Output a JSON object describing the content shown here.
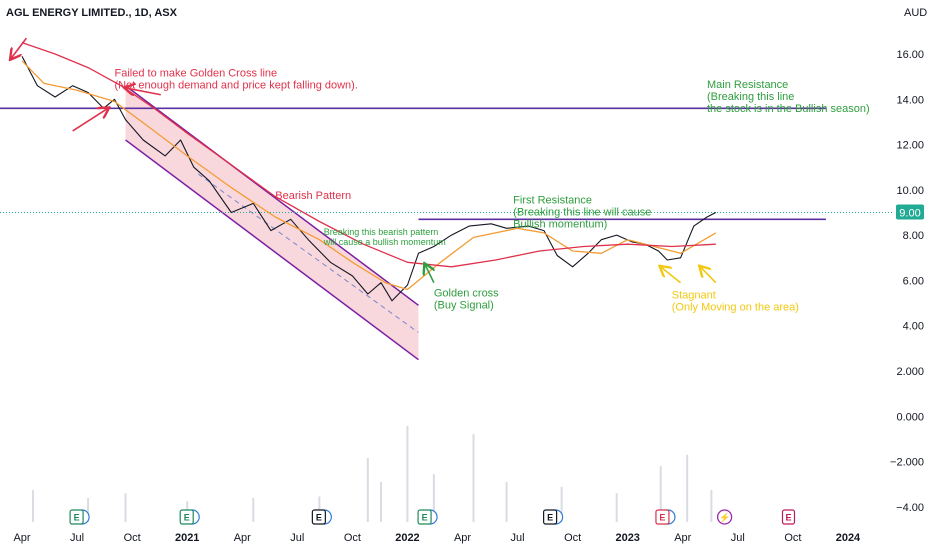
{
  "header": {
    "symbol": "AGL ENERGY LIMITED., 1D, ASX",
    "currency": "AUD"
  },
  "chart_data": {
    "type": "candlestick",
    "x_ticks": [
      "Apr",
      "Jul",
      "Oct",
      "2021",
      "Apr",
      "Jul",
      "Oct",
      "2022",
      "Apr",
      "Jul",
      "Oct",
      "2023",
      "Apr",
      "Jul",
      "Oct",
      "2024"
    ],
    "x_tick_bold": [
      false,
      false,
      false,
      true,
      false,
      false,
      false,
      true,
      false,
      false,
      false,
      true,
      false,
      false,
      false,
      true
    ],
    "y_ticks": [
      "16.00",
      "14.00",
      "12.00",
      "10.00",
      "8.00",
      "6.00",
      "4.00",
      "2.000",
      "0.000",
      "−2.000",
      "−4.00"
    ],
    "ylim": [
      -4.8,
      17.5
    ],
    "last_price": {
      "label": "9.00",
      "value": 9.0,
      "color": "#22ab94"
    },
    "series": [
      {
        "name": "price",
        "color": "#131722",
        "points": [
          [
            2020.25,
            15.9
          ],
          [
            2020.32,
            14.6
          ],
          [
            2020.4,
            14.1
          ],
          [
            2020.48,
            14.6
          ],
          [
            2020.55,
            14.3
          ],
          [
            2020.62,
            13.6
          ],
          [
            2020.67,
            14.0
          ],
          [
            2020.72,
            13.1
          ],
          [
            2020.8,
            12.2
          ],
          [
            2020.9,
            11.5
          ],
          [
            2020.97,
            12.2
          ],
          [
            2021.03,
            11.0
          ],
          [
            2021.1,
            10.4
          ],
          [
            2021.2,
            9.0
          ],
          [
            2021.3,
            9.4
          ],
          [
            2021.38,
            8.2
          ],
          [
            2021.47,
            8.7
          ],
          [
            2021.55,
            7.8
          ],
          [
            2021.65,
            6.8
          ],
          [
            2021.75,
            6.2
          ],
          [
            2021.82,
            5.4
          ],
          [
            2021.88,
            5.9
          ],
          [
            2021.93,
            5.1
          ],
          [
            2022.0,
            5.8
          ],
          [
            2022.05,
            7.2
          ],
          [
            2022.12,
            7.5
          ],
          [
            2022.2,
            8.0
          ],
          [
            2022.28,
            8.4
          ],
          [
            2022.38,
            8.5
          ],
          [
            2022.45,
            8.3
          ],
          [
            2022.55,
            8.4
          ],
          [
            2022.62,
            8.2
          ],
          [
            2022.68,
            7.1
          ],
          [
            2022.75,
            6.6
          ],
          [
            2022.82,
            7.2
          ],
          [
            2022.88,
            7.8
          ],
          [
            2022.95,
            8.0
          ],
          [
            2023.02,
            7.7
          ],
          [
            2023.08,
            7.6
          ],
          [
            2023.14,
            7.3
          ],
          [
            2023.18,
            6.9
          ],
          [
            2023.24,
            7.0
          ],
          [
            2023.3,
            8.4
          ],
          [
            2023.36,
            8.8
          ],
          [
            2023.4,
            9.0
          ]
        ]
      },
      {
        "name": "ma-fast",
        "color": "#f39c33",
        "points": [
          [
            2020.25,
            15.7
          ],
          [
            2020.35,
            14.7
          ],
          [
            2020.5,
            14.4
          ],
          [
            2020.67,
            13.9
          ],
          [
            2020.85,
            12.6
          ],
          [
            2021.0,
            11.5
          ],
          [
            2021.2,
            10.1
          ],
          [
            2021.4,
            8.8
          ],
          [
            2021.6,
            7.8
          ],
          [
            2021.75,
            6.8
          ],
          [
            2021.9,
            5.9
          ],
          [
            2022.0,
            5.6
          ],
          [
            2022.15,
            6.8
          ],
          [
            2022.3,
            7.9
          ],
          [
            2022.5,
            8.3
          ],
          [
            2022.62,
            8.1
          ],
          [
            2022.75,
            7.3
          ],
          [
            2022.88,
            7.2
          ],
          [
            2023.0,
            7.8
          ],
          [
            2023.12,
            7.5
          ],
          [
            2023.24,
            7.2
          ],
          [
            2023.4,
            8.1
          ]
        ]
      },
      {
        "name": "ma-slow",
        "color": "#e0314b",
        "points": [
          [
            2020.25,
            16.5
          ],
          [
            2020.4,
            16.0
          ],
          [
            2020.55,
            15.4
          ],
          [
            2020.7,
            14.6
          ],
          [
            2020.85,
            13.6
          ],
          [
            2021.0,
            12.5
          ],
          [
            2021.2,
            11.1
          ],
          [
            2021.4,
            9.7
          ],
          [
            2021.6,
            8.6
          ],
          [
            2021.8,
            7.6
          ],
          [
            2022.0,
            6.8
          ],
          [
            2022.2,
            6.6
          ],
          [
            2022.4,
            6.9
          ],
          [
            2022.6,
            7.3
          ],
          [
            2022.8,
            7.5
          ],
          [
            2023.0,
            7.6
          ],
          [
            2023.2,
            7.5
          ],
          [
            2023.4,
            7.6
          ]
        ]
      }
    ],
    "volume_bars": [
      [
        2020.3,
        2
      ],
      [
        2020.55,
        1.5
      ],
      [
        2020.72,
        1.8
      ],
      [
        2021.0,
        1.3
      ],
      [
        2021.3,
        1.5
      ],
      [
        2021.6,
        1.6
      ],
      [
        2021.82,
        4.0
      ],
      [
        2021.88,
        2.5
      ],
      [
        2022.0,
        6.0
      ],
      [
        2022.12,
        3.0
      ],
      [
        2022.3,
        5.5
      ],
      [
        2022.45,
        2.5
      ],
      [
        2022.7,
        2.2
      ],
      [
        2022.95,
        1.8
      ],
      [
        2023.15,
        3.5
      ],
      [
        2023.27,
        4.2
      ],
      [
        2023.38,
        2.0
      ]
    ],
    "channel": {
      "upper": [
        [
          2020.72,
          14.6
        ],
        [
          2022.05,
          4.9
        ]
      ],
      "lower": [
        [
          2020.72,
          12.2
        ],
        [
          2022.05,
          2.5
        ]
      ],
      "fill": "#f7c7cf",
      "stroke": "#7b1fa2"
    },
    "channel_midline": [
      [
        2021.05,
        10.7
      ],
      [
        2022.05,
        3.7
      ]
    ],
    "lines": [
      {
        "name": "main-resistance",
        "y": 13.6,
        "x0": 2020.15,
        "x1": 2023.9,
        "color": "#5b2fa0"
      },
      {
        "name": "first-resistance",
        "y": 8.7,
        "x0": 2022.05,
        "x1": 2023.9,
        "color": "#5b2fa0"
      }
    ],
    "annotations": [
      {
        "name": "failed-golden-cross",
        "lines": [
          "Failed to make Golden Cross line",
          "(Not enough demand and price kept falling down)."
        ],
        "color": "red",
        "x": 2020.67,
        "y": 15.0,
        "size": "normal"
      },
      {
        "name": "bearish-pattern",
        "lines": [
          "Bearish Pattern"
        ],
        "color": "red",
        "x": 2021.4,
        "y": 9.6,
        "size": "normal"
      },
      {
        "name": "breaking-bearish",
        "lines": [
          "Breaking this bearish pattern",
          "will cause a bullish momentum"
        ],
        "color": "green",
        "x": 2021.62,
        "y": 8.0,
        "size": "small"
      },
      {
        "name": "golden-cross",
        "lines": [
          "Golden cross",
          "(Buy Signal)"
        ],
        "color": "green",
        "x": 2022.12,
        "y": 5.3,
        "size": "normal"
      },
      {
        "name": "first-resistance",
        "lines": [
          "First Resistance",
          "(Breaking this line will cause",
          "Bullish momentum)"
        ],
        "color": "green",
        "x": 2022.48,
        "y": 9.4,
        "size": "normal"
      },
      {
        "name": "main-resistance",
        "lines": [
          "Main Resistance",
          "(Breaking this line",
          "the stock is in the Bullish season)"
        ],
        "color": "green",
        "x": 2023.36,
        "y": 14.5,
        "size": "normal"
      },
      {
        "name": "stagnant",
        "lines": [
          "Stagnant",
          "(Only Moving on the area)"
        ],
        "color": "yellow",
        "x": 2023.2,
        "y": 5.2,
        "size": "normal"
      }
    ],
    "arrows": [
      {
        "name": "arrow-red-1",
        "from": [
          2020.27,
          16.7
        ],
        "to": [
          2020.2,
          15.8
        ],
        "color": "#e0314b"
      },
      {
        "name": "arrow-red-2",
        "from": [
          2020.88,
          14.2
        ],
        "to": [
          2020.72,
          14.5
        ],
        "color": "#e0314b"
      },
      {
        "name": "arrow-red-3",
        "from": [
          2020.48,
          12.6
        ],
        "to": [
          2020.64,
          13.6
        ],
        "color": "#e0314b"
      },
      {
        "name": "arrow-green-golden-cross",
        "from": [
          2022.12,
          5.9
        ],
        "to": [
          2022.08,
          6.7
        ],
        "color": "#2e9e3e"
      },
      {
        "name": "arrow-yellow-1",
        "from": [
          2023.24,
          5.9
        ],
        "to": [
          2023.15,
          6.6
        ],
        "color": "#f2c811"
      },
      {
        "name": "arrow-yellow-2",
        "from": [
          2023.4,
          5.9
        ],
        "to": [
          2023.33,
          6.6
        ],
        "color": "#f2c811"
      }
    ],
    "events": [
      {
        "x": 2020.5,
        "label": "E",
        "kind": "earnings",
        "color": "#1e8a5a"
      },
      {
        "x": 2021.0,
        "label": "E",
        "kind": "earnings",
        "color": "#1e8a5a"
      },
      {
        "x": 2021.6,
        "label": "E",
        "kind": "earnings",
        "color": "#131722"
      },
      {
        "x": 2022.08,
        "label": "E",
        "kind": "earnings",
        "color": "#1e8a5a"
      },
      {
        "x": 2022.65,
        "label": "E",
        "kind": "earnings",
        "color": "#131722"
      },
      {
        "x": 2023.16,
        "label": "E",
        "kind": "earnings",
        "color": "#d3334d"
      },
      {
        "x": 2023.44,
        "label": "⚡",
        "kind": "flash",
        "color": "#9c27b0"
      },
      {
        "x": 2023.73,
        "label": "E",
        "kind": "earnings-future",
        "color": "#c2185b"
      }
    ]
  }
}
